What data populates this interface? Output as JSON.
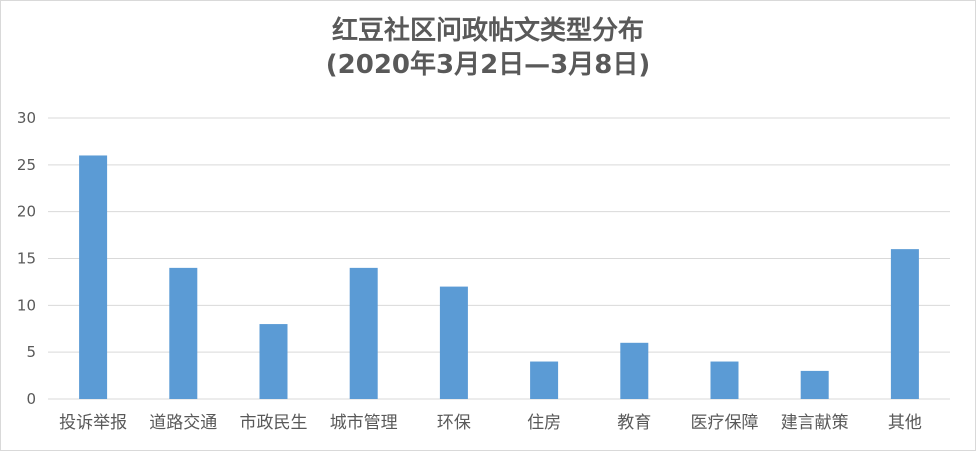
{
  "chart_data": {
    "type": "bar",
    "title_line1": "红豆社区问政帖文类型分布",
    "title_line2": "(2020年3月2日—3月8日)",
    "categories": [
      "投诉举报",
      "道路交通",
      "市政民生",
      "城市管理",
      "环保",
      "住房",
      "教育",
      "医疗保障",
      "建言献策",
      "其他"
    ],
    "series": [
      {
        "values": [
          26,
          14,
          8,
          14,
          12,
          4,
          6,
          4,
          3,
          16
        ]
      }
    ],
    "ylim": [
      0,
      30
    ],
    "yticks": [
      0,
      5,
      10,
      15,
      20,
      25,
      30
    ],
    "grid": true,
    "legend": "none",
    "bar_color": "#5b9bd5",
    "grid_color": "#d9d9d9",
    "text_color": "#595959"
  }
}
